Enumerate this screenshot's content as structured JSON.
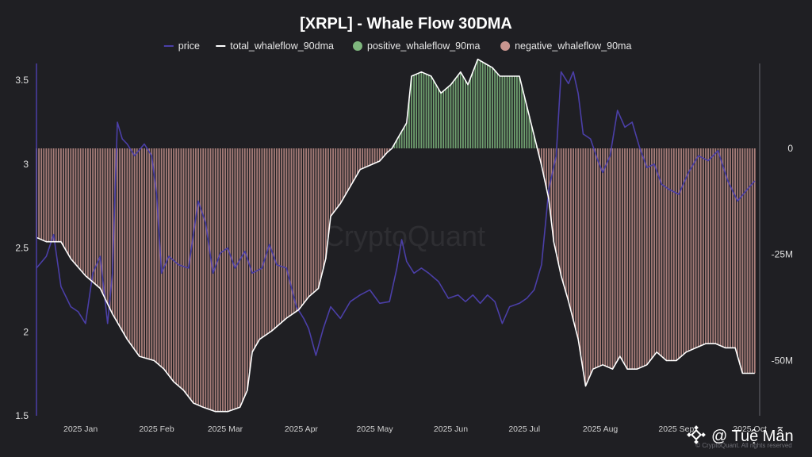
{
  "chart_data": {
    "type": "line",
    "title": "[XRPL] - Whale Flow 30DMA",
    "legend": {
      "placement": "top-center",
      "entries": [
        {
          "label": "price",
          "style": "line",
          "color": "#4b3fa8"
        },
        {
          "label": "total_whaleflow_90dma",
          "style": "line",
          "color": "#ffffff"
        },
        {
          "label": "positive_whaleflow_90ma",
          "style": "dot",
          "color": "#7fb77e"
        },
        {
          "label": "negative_whaleflow_90ma",
          "style": "dot",
          "color": "#c9958f"
        }
      ]
    },
    "watermark": "CryptoQuant",
    "footer_note": "© CryptoQuant. All rights reserved",
    "credit": "@ Tuệ Mẫn",
    "x_axis": {
      "type": "date",
      "range": [
        "2024-12-14",
        "2025-10-05"
      ],
      "ticks": [
        {
          "label": "2025 Jan",
          "date": "2025-01-01"
        },
        {
          "label": "2025 Feb",
          "date": "2025-02-01"
        },
        {
          "label": "2025 Mar",
          "date": "2025-03-01"
        },
        {
          "label": "2025 Apr",
          "date": "2025-04-01"
        },
        {
          "label": "2025 May",
          "date": "2025-05-01"
        },
        {
          "label": "2025 Jun",
          "date": "2025-06-01"
        },
        {
          "label": "2025 Jul",
          "date": "2025-07-01"
        },
        {
          "label": "2025 Aug",
          "date": "2025-08-01"
        },
        {
          "label": "2025 Sep",
          "date": "2025-09-01"
        },
        {
          "label": "2025 Oct",
          "date": "2025-10-01"
        }
      ]
    },
    "y_left": {
      "range": [
        1.5,
        3.6
      ],
      "ticks": [
        {
          "label": "1.5",
          "value": 1.5
        },
        {
          "label": "2",
          "value": 2
        },
        {
          "label": "2.5",
          "value": 2.5
        },
        {
          "label": "3",
          "value": 3
        },
        {
          "label": "3.5",
          "value": 3.5
        }
      ]
    },
    "y_right": {
      "range": [
        -63,
        20
      ],
      "ticks": [
        {
          "label": "0",
          "value": 0
        },
        {
          "label": "-25M",
          "value": -25
        },
        {
          "label": "-50M",
          "value": -50
        }
      ]
    },
    "grid": false,
    "series": [
      {
        "name": "price",
        "axis": "left",
        "color": "#4b3fa8",
        "points": [
          [
            "2024-12-14",
            2.38
          ],
          [
            "2024-12-18",
            2.45
          ],
          [
            "2024-12-21",
            2.58
          ],
          [
            "2024-12-24",
            2.27
          ],
          [
            "2024-12-28",
            2.15
          ],
          [
            "2024-12-31",
            2.12
          ],
          [
            "2025-01-03",
            2.05
          ],
          [
            "2025-01-06",
            2.35
          ],
          [
            "2025-01-09",
            2.45
          ],
          [
            "2025-01-12",
            2.05
          ],
          [
            "2025-01-14",
            2.35
          ],
          [
            "2025-01-16",
            3.25
          ],
          [
            "2025-01-18",
            3.15
          ],
          [
            "2025-01-20",
            3.12
          ],
          [
            "2025-01-23",
            3.05
          ],
          [
            "2025-01-27",
            3.12
          ],
          [
            "2025-01-30",
            3.05
          ],
          [
            "2025-02-01",
            2.82
          ],
          [
            "2025-02-03",
            2.35
          ],
          [
            "2025-02-06",
            2.45
          ],
          [
            "2025-02-10",
            2.4
          ],
          [
            "2025-02-14",
            2.38
          ],
          [
            "2025-02-18",
            2.78
          ],
          [
            "2025-02-21",
            2.65
          ],
          [
            "2025-02-24",
            2.35
          ],
          [
            "2025-02-27",
            2.47
          ],
          [
            "2025-03-02",
            2.5
          ],
          [
            "2025-03-05",
            2.38
          ],
          [
            "2025-03-09",
            2.48
          ],
          [
            "2025-03-12",
            2.35
          ],
          [
            "2025-03-16",
            2.38
          ],
          [
            "2025-03-19",
            2.52
          ],
          [
            "2025-03-22",
            2.4
          ],
          [
            "2025-03-26",
            2.38
          ],
          [
            "2025-03-30",
            2.15
          ],
          [
            "2025-04-02",
            2.08
          ],
          [
            "2025-04-04",
            2.02
          ],
          [
            "2025-04-07",
            1.86
          ],
          [
            "2025-04-10",
            2.02
          ],
          [
            "2025-04-13",
            2.15
          ],
          [
            "2025-04-17",
            2.08
          ],
          [
            "2025-04-21",
            2.18
          ],
          [
            "2025-04-25",
            2.22
          ],
          [
            "2025-04-29",
            2.25
          ],
          [
            "2025-05-03",
            2.17
          ],
          [
            "2025-05-07",
            2.18
          ],
          [
            "2025-05-10",
            2.38
          ],
          [
            "2025-05-12",
            2.55
          ],
          [
            "2025-05-14",
            2.42
          ],
          [
            "2025-05-17",
            2.35
          ],
          [
            "2025-05-20",
            2.38
          ],
          [
            "2025-05-23",
            2.35
          ],
          [
            "2025-05-27",
            2.3
          ],
          [
            "2025-05-31",
            2.2
          ],
          [
            "2025-06-04",
            2.22
          ],
          [
            "2025-06-07",
            2.18
          ],
          [
            "2025-06-10",
            2.22
          ],
          [
            "2025-06-13",
            2.17
          ],
          [
            "2025-06-16",
            2.22
          ],
          [
            "2025-06-19",
            2.18
          ],
          [
            "2025-06-22",
            2.05
          ],
          [
            "2025-06-25",
            2.15
          ],
          [
            "2025-06-29",
            2.17
          ],
          [
            "2025-07-02",
            2.2
          ],
          [
            "2025-07-05",
            2.25
          ],
          [
            "2025-07-08",
            2.4
          ],
          [
            "2025-07-11",
            2.85
          ],
          [
            "2025-07-14",
            3.05
          ],
          [
            "2025-07-16",
            3.55
          ],
          [
            "2025-07-19",
            3.48
          ],
          [
            "2025-07-21",
            3.55
          ],
          [
            "2025-07-23",
            3.42
          ],
          [
            "2025-07-25",
            3.18
          ],
          [
            "2025-07-28",
            3.15
          ],
          [
            "2025-07-31",
            3.02
          ],
          [
            "2025-08-02",
            2.95
          ],
          [
            "2025-08-05",
            3.05
          ],
          [
            "2025-08-08",
            3.32
          ],
          [
            "2025-08-11",
            3.22
          ],
          [
            "2025-08-14",
            3.25
          ],
          [
            "2025-08-17",
            3.1
          ],
          [
            "2025-08-20",
            2.98
          ],
          [
            "2025-08-23",
            3.0
          ],
          [
            "2025-08-26",
            2.88
          ],
          [
            "2025-08-29",
            2.85
          ],
          [
            "2025-09-02",
            2.82
          ],
          [
            "2025-09-06",
            2.95
          ],
          [
            "2025-09-10",
            3.05
          ],
          [
            "2025-09-14",
            3.02
          ],
          [
            "2025-09-18",
            3.08
          ],
          [
            "2025-09-22",
            2.9
          ],
          [
            "2025-09-26",
            2.78
          ],
          [
            "2025-09-30",
            2.85
          ],
          [
            "2025-10-03",
            2.9
          ]
        ]
      },
      {
        "name": "total_whaleflow_90dma",
        "axis": "right",
        "unit": "M",
        "color": "#ffffff",
        "points": [
          [
            "2024-12-14",
            -21
          ],
          [
            "2024-12-18",
            -22
          ],
          [
            "2024-12-24",
            -22
          ],
          [
            "2024-12-28",
            -26
          ],
          [
            "2025-01-03",
            -30
          ],
          [
            "2025-01-09",
            -33
          ],
          [
            "2025-01-14",
            -39
          ],
          [
            "2025-01-20",
            -45
          ],
          [
            "2025-01-25",
            -49
          ],
          [
            "2025-01-31",
            -50
          ],
          [
            "2025-02-04",
            -52
          ],
          [
            "2025-02-08",
            -55
          ],
          [
            "2025-02-12",
            -57
          ],
          [
            "2025-02-16",
            -60
          ],
          [
            "2025-02-20",
            -61
          ],
          [
            "2025-02-25",
            -62
          ],
          [
            "2025-03-02",
            -62
          ],
          [
            "2025-03-07",
            -61
          ],
          [
            "2025-03-10",
            -57
          ],
          [
            "2025-03-12",
            -48
          ],
          [
            "2025-03-15",
            -45
          ],
          [
            "2025-03-20",
            -43
          ],
          [
            "2025-03-26",
            -40
          ],
          [
            "2025-03-31",
            -38
          ],
          [
            "2025-04-04",
            -35
          ],
          [
            "2025-04-08",
            -33
          ],
          [
            "2025-04-11",
            -26
          ],
          [
            "2025-04-13",
            -16
          ],
          [
            "2025-04-17",
            -13
          ],
          [
            "2025-04-21",
            -9
          ],
          [
            "2025-04-25",
            -5
          ],
          [
            "2025-04-29",
            -4
          ],
          [
            "2025-05-03",
            -3
          ],
          [
            "2025-05-06",
            -1
          ],
          [
            "2025-05-08",
            0
          ],
          [
            "2025-05-11",
            3
          ],
          [
            "2025-05-14",
            6
          ],
          [
            "2025-05-16",
            17
          ],
          [
            "2025-05-20",
            18
          ],
          [
            "2025-05-24",
            17
          ],
          [
            "2025-05-28",
            13
          ],
          [
            "2025-06-01",
            15
          ],
          [
            "2025-06-05",
            18
          ],
          [
            "2025-06-08",
            15
          ],
          [
            "2025-06-12",
            21
          ],
          [
            "2025-06-15",
            20
          ],
          [
            "2025-06-18",
            19
          ],
          [
            "2025-06-21",
            17
          ],
          [
            "2025-06-25",
            17
          ],
          [
            "2025-06-29",
            17
          ],
          [
            "2025-07-02",
            10
          ],
          [
            "2025-07-05",
            3
          ],
          [
            "2025-07-08",
            -4
          ],
          [
            "2025-07-11",
            -12
          ],
          [
            "2025-07-13",
            -22
          ],
          [
            "2025-07-16",
            -30
          ],
          [
            "2025-07-19",
            -36
          ],
          [
            "2025-07-23",
            -45
          ],
          [
            "2025-07-26",
            -56
          ],
          [
            "2025-07-29",
            -52
          ],
          [
            "2025-08-02",
            -51
          ],
          [
            "2025-08-06",
            -52
          ],
          [
            "2025-08-09",
            -49
          ],
          [
            "2025-08-12",
            -52
          ],
          [
            "2025-08-16",
            -52
          ],
          [
            "2025-08-20",
            -51
          ],
          [
            "2025-08-24",
            -48
          ],
          [
            "2025-08-28",
            -50
          ],
          [
            "2025-09-01",
            -50
          ],
          [
            "2025-09-05",
            -48
          ],
          [
            "2025-09-09",
            -47
          ],
          [
            "2025-09-13",
            -46
          ],
          [
            "2025-09-17",
            -46
          ],
          [
            "2025-09-21",
            -47
          ],
          [
            "2025-09-25",
            -47
          ],
          [
            "2025-09-28",
            -53
          ],
          [
            "2025-10-03",
            -53
          ]
        ]
      }
    ]
  }
}
